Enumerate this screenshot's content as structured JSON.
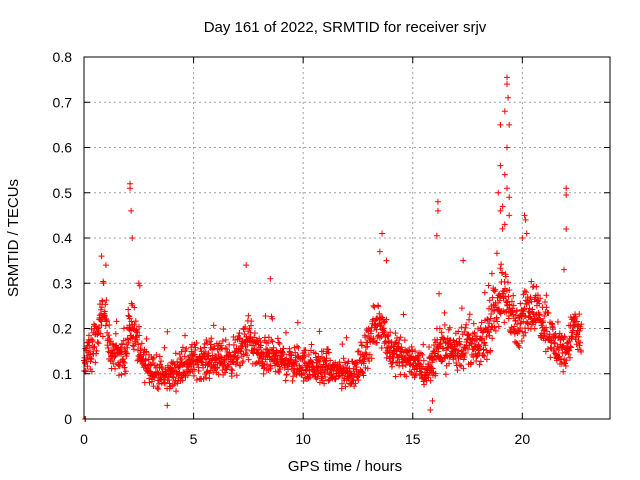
{
  "chart_data": {
    "type": "scatter",
    "title": "Day 161 of 2022, SRMTID for receiver srjv",
    "xlabel": "GPS time / hours",
    "ylabel": "SRMTID / TECUs",
    "xlim": [
      0,
      24
    ],
    "ylim": [
      0,
      0.8
    ],
    "xticks": [
      0,
      5,
      10,
      15,
      20
    ],
    "xtick_labels": [
      "0",
      "5",
      "10",
      "15",
      "20"
    ],
    "yticks": [
      0,
      0.1,
      0.2,
      0.3,
      0.4,
      0.5,
      0.6,
      0.7,
      0.8
    ],
    "ytick_labels": [
      "0",
      "0.1",
      "0.2",
      "0.3",
      "0.4",
      "0.5",
      "0.6",
      "0.7",
      "0.8"
    ],
    "grid": true,
    "marker": "+",
    "series": [
      {
        "name": "SRMTID",
        "color": "#ff0000",
        "profile": [
          [
            0.0,
            0.12
          ],
          [
            0.5,
            0.18
          ],
          [
            0.9,
            0.25
          ],
          [
            1.2,
            0.15
          ],
          [
            1.8,
            0.13
          ],
          [
            2.2,
            0.22
          ],
          [
            2.6,
            0.13
          ],
          [
            3.0,
            0.12
          ],
          [
            3.6,
            0.09
          ],
          [
            4.0,
            0.1
          ],
          [
            5.0,
            0.13
          ],
          [
            6.0,
            0.13
          ],
          [
            7.0,
            0.14
          ],
          [
            7.5,
            0.18
          ],
          [
            8.0,
            0.14
          ],
          [
            9.0,
            0.13
          ],
          [
            10.0,
            0.12
          ],
          [
            11.0,
            0.11
          ],
          [
            12.0,
            0.1
          ],
          [
            12.5,
            0.11
          ],
          [
            13.0,
            0.17
          ],
          [
            13.5,
            0.22
          ],
          [
            14.0,
            0.15
          ],
          [
            15.0,
            0.13
          ],
          [
            15.6,
            0.1
          ],
          [
            16.2,
            0.16
          ],
          [
            17.0,
            0.15
          ],
          [
            17.5,
            0.17
          ],
          [
            18.0,
            0.15
          ],
          [
            18.5,
            0.2
          ],
          [
            19.0,
            0.28
          ],
          [
            19.4,
            0.26
          ],
          [
            19.8,
            0.18
          ],
          [
            20.2,
            0.26
          ],
          [
            20.6,
            0.24
          ],
          [
            21.0,
            0.22
          ],
          [
            21.5,
            0.16
          ],
          [
            22.0,
            0.15
          ],
          [
            22.3,
            0.2
          ],
          [
            22.7,
            0.18
          ]
        ],
        "peaks": [
          [
            0.05,
            0.0
          ],
          [
            0.07,
            0.0
          ],
          [
            0.8,
            0.36
          ],
          [
            1.0,
            0.34
          ],
          [
            2.1,
            0.52
          ],
          [
            2.1,
            0.51
          ],
          [
            2.15,
            0.46
          ],
          [
            2.2,
            0.4
          ],
          [
            2.5,
            0.3
          ],
          [
            7.4,
            0.34
          ],
          [
            8.5,
            0.31
          ],
          [
            13.6,
            0.41
          ],
          [
            13.5,
            0.37
          ],
          [
            13.8,
            0.35
          ],
          [
            16.15,
            0.48
          ],
          [
            16.15,
            0.46
          ],
          [
            16.1,
            0.405
          ],
          [
            17.3,
            0.35
          ],
          [
            19.3,
            0.755
          ],
          [
            19.3,
            0.74
          ],
          [
            19.35,
            0.71
          ],
          [
            19.2,
            0.68
          ],
          [
            19.0,
            0.65
          ],
          [
            19.4,
            0.65
          ],
          [
            19.3,
            0.6
          ],
          [
            19.0,
            0.56
          ],
          [
            19.2,
            0.54
          ],
          [
            19.3,
            0.51
          ],
          [
            18.9,
            0.5
          ],
          [
            19.4,
            0.49
          ],
          [
            19.1,
            0.47
          ],
          [
            19.0,
            0.46
          ],
          [
            19.4,
            0.45
          ],
          [
            19.2,
            0.43
          ],
          [
            20.1,
            0.45
          ],
          [
            20.15,
            0.44
          ],
          [
            20.2,
            0.41
          ],
          [
            20.0,
            0.4
          ],
          [
            22.0,
            0.51
          ],
          [
            22.0,
            0.495
          ],
          [
            22.0,
            0.42
          ],
          [
            21.9,
            0.33
          ],
          [
            15.8,
            0.02
          ],
          [
            15.9,
            0.04
          ],
          [
            3.8,
            0.03
          ]
        ]
      }
    ]
  }
}
